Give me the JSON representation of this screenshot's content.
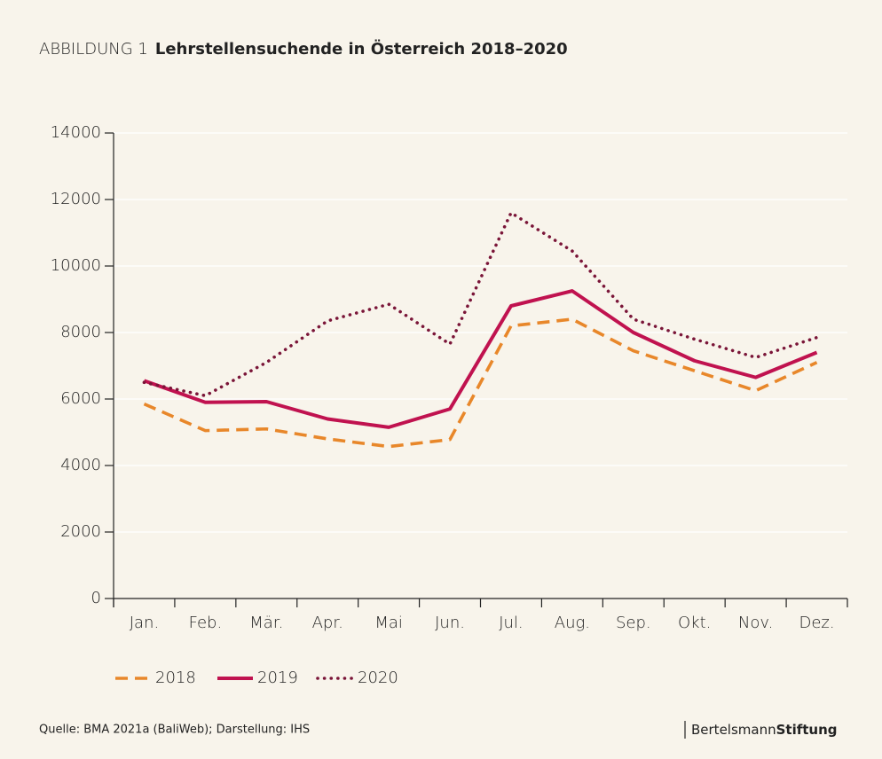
{
  "chart_data": {
    "type": "line",
    "figure_label": "ABBILDUNG 1",
    "title": "Lehrstellensuchende in Österreich 2018–2020",
    "categories": [
      "Jan.",
      "Feb.",
      "Mär.",
      "Apr.",
      "Mai",
      "Jun.",
      "Jul.",
      "Aug.",
      "Sep.",
      "Okt.",
      "Nov.",
      "Dez."
    ],
    "series": [
      {
        "name": "2018",
        "color": "#e8872a",
        "style": "dashed",
        "values": [
          5850,
          5050,
          5100,
          4800,
          4570,
          4780,
          8200,
          8400,
          7450,
          6850,
          6250,
          7100
        ]
      },
      {
        "name": "2019",
        "color": "#c0124f",
        "style": "solid",
        "values": [
          6550,
          5900,
          5920,
          5400,
          5150,
          5700,
          8800,
          9250,
          8000,
          7150,
          6650,
          7400
        ]
      },
      {
        "name": "2020",
        "color": "#7a1538",
        "style": "dotted",
        "values": [
          6500,
          6100,
          7100,
          8350,
          8850,
          7650,
          11600,
          10450,
          8400,
          7800,
          7250,
          7850
        ]
      }
    ],
    "ylim": [
      0,
      14000
    ],
    "yticks": [
      0,
      2000,
      4000,
      6000,
      8000,
      10000,
      12000,
      14000
    ],
    "grid": true,
    "legend": "bottom",
    "source": "Quelle: BMA 2021a (BaliWeb); Darstellung: IHS",
    "brand": {
      "light": "Bertelsmann",
      "bold": "Stiftung"
    }
  }
}
